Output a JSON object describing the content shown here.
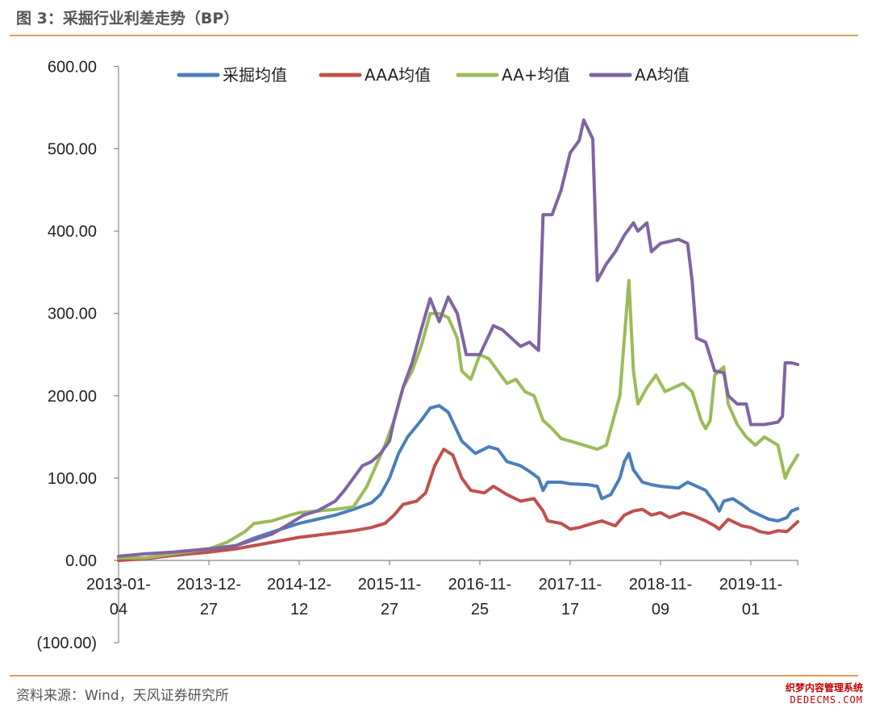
{
  "page": {
    "title": "图 3：采掘行业利差走势（BP）",
    "source": "资料来源：Wind，天风证券研究所",
    "watermark_cn": "织梦内容管理系统",
    "watermark_en": "DEDECMS.COM"
  },
  "chart_data": {
    "type": "line",
    "title": "采掘行业利差走势（BP）",
    "xlabel": "",
    "ylabel": "",
    "ylim": [
      -100,
      600
    ],
    "y_ticks": [
      {
        "value": 600,
        "label": "600.00"
      },
      {
        "value": 500,
        "label": "500.00"
      },
      {
        "value": 400,
        "label": "400.00"
      },
      {
        "value": 300,
        "label": "300.00"
      },
      {
        "value": 200,
        "label": "200.00"
      },
      {
        "value": 100,
        "label": "100.00"
      },
      {
        "value": 0,
        "label": "0.00"
      },
      {
        "value": -100,
        "label": "(100.00)",
        "negative": true
      }
    ],
    "x_ticks": [
      {
        "label_top": "2013-01-",
        "label_bottom": "04",
        "pos": 0
      },
      {
        "label_top": "2013-12-",
        "label_bottom": "27",
        "pos": 1
      },
      {
        "label_top": "2014-12-",
        "label_bottom": "12",
        "pos": 2
      },
      {
        "label_top": "2015-11-",
        "label_bottom": "27",
        "pos": 3
      },
      {
        "label_top": "2016-11-",
        "label_bottom": "25",
        "pos": 4
      },
      {
        "label_top": "2017-11-",
        "label_bottom": "17",
        "pos": 5
      },
      {
        "label_top": "2018-11-",
        "label_bottom": "09",
        "pos": 6
      },
      {
        "label_top": "2019-11-",
        "label_bottom": "01",
        "pos": 7
      }
    ],
    "x_range": [
      0,
      7.52
    ],
    "legend_position": "top",
    "grid": false,
    "series": [
      {
        "name": "采掘均值",
        "color": "#4a7ebb",
        "points": [
          [
            0,
            0
          ],
          [
            0.3,
            3
          ],
          [
            0.6,
            8
          ],
          [
            1.0,
            12
          ],
          [
            1.3,
            18
          ],
          [
            1.5,
            27
          ],
          [
            1.8,
            38
          ],
          [
            2.0,
            45
          ],
          [
            2.2,
            50
          ],
          [
            2.4,
            55
          ],
          [
            2.6,
            62
          ],
          [
            2.8,
            70
          ],
          [
            2.9,
            80
          ],
          [
            3.0,
            100
          ],
          [
            3.1,
            130
          ],
          [
            3.2,
            150
          ],
          [
            3.35,
            170
          ],
          [
            3.45,
            185
          ],
          [
            3.55,
            188
          ],
          [
            3.65,
            180
          ],
          [
            3.8,
            145
          ],
          [
            3.95,
            130
          ],
          [
            4.1,
            138
          ],
          [
            4.2,
            135
          ],
          [
            4.3,
            120
          ],
          [
            4.45,
            115
          ],
          [
            4.55,
            108
          ],
          [
            4.65,
            100
          ],
          [
            4.7,
            85
          ],
          [
            4.75,
            95
          ],
          [
            4.9,
            95
          ],
          [
            5.0,
            93
          ],
          [
            5.2,
            92
          ],
          [
            5.3,
            90
          ],
          [
            5.35,
            75
          ],
          [
            5.45,
            80
          ],
          [
            5.55,
            100
          ],
          [
            5.6,
            120
          ],
          [
            5.65,
            130
          ],
          [
            5.7,
            110
          ],
          [
            5.8,
            95
          ],
          [
            5.9,
            92
          ],
          [
            6.0,
            90
          ],
          [
            6.2,
            88
          ],
          [
            6.3,
            95
          ],
          [
            6.4,
            90
          ],
          [
            6.5,
            85
          ],
          [
            6.6,
            70
          ],
          [
            6.65,
            60
          ],
          [
            6.7,
            72
          ],
          [
            6.8,
            75
          ],
          [
            6.9,
            68
          ],
          [
            7.0,
            60
          ],
          [
            7.1,
            55
          ],
          [
            7.2,
            50
          ],
          [
            7.3,
            48
          ],
          [
            7.4,
            52
          ],
          [
            7.45,
            60
          ],
          [
            7.52,
            63
          ]
        ]
      },
      {
        "name": "AAA均值",
        "color": "#c0504d",
        "points": [
          [
            0,
            0
          ],
          [
            0.3,
            2
          ],
          [
            0.6,
            6
          ],
          [
            1.0,
            10
          ],
          [
            1.3,
            14
          ],
          [
            1.5,
            18
          ],
          [
            1.8,
            24
          ],
          [
            2.0,
            28
          ],
          [
            2.3,
            32
          ],
          [
            2.6,
            36
          ],
          [
            2.8,
            40
          ],
          [
            2.95,
            45
          ],
          [
            3.05,
            55
          ],
          [
            3.15,
            68
          ],
          [
            3.3,
            72
          ],
          [
            3.4,
            82
          ],
          [
            3.5,
            115
          ],
          [
            3.6,
            135
          ],
          [
            3.7,
            128
          ],
          [
            3.8,
            100
          ],
          [
            3.9,
            85
          ],
          [
            4.05,
            82
          ],
          [
            4.15,
            90
          ],
          [
            4.3,
            80
          ],
          [
            4.45,
            72
          ],
          [
            4.6,
            75
          ],
          [
            4.7,
            60
          ],
          [
            4.75,
            48
          ],
          [
            4.9,
            45
          ],
          [
            5.0,
            38
          ],
          [
            5.1,
            40
          ],
          [
            5.25,
            45
          ],
          [
            5.35,
            48
          ],
          [
            5.5,
            42
          ],
          [
            5.6,
            55
          ],
          [
            5.7,
            60
          ],
          [
            5.8,
            62
          ],
          [
            5.9,
            55
          ],
          [
            6.0,
            58
          ],
          [
            6.1,
            52
          ],
          [
            6.25,
            58
          ],
          [
            6.35,
            55
          ],
          [
            6.5,
            48
          ],
          [
            6.6,
            42
          ],
          [
            6.65,
            38
          ],
          [
            6.75,
            50
          ],
          [
            6.9,
            42
          ],
          [
            7.0,
            40
          ],
          [
            7.1,
            35
          ],
          [
            7.2,
            33
          ],
          [
            7.3,
            36
          ],
          [
            7.4,
            35
          ],
          [
            7.45,
            40
          ],
          [
            7.52,
            47
          ]
        ]
      },
      {
        "name": "AA+均值",
        "color": "#9bbb59",
        "points": [
          [
            0,
            3
          ],
          [
            0.3,
            3
          ],
          [
            0.6,
            8
          ],
          [
            1.0,
            14
          ],
          [
            1.2,
            22
          ],
          [
            1.4,
            35
          ],
          [
            1.5,
            45
          ],
          [
            1.7,
            48
          ],
          [
            1.9,
            55
          ],
          [
            2.0,
            58
          ],
          [
            2.2,
            60
          ],
          [
            2.4,
            62
          ],
          [
            2.6,
            65
          ],
          [
            2.75,
            90
          ],
          [
            2.85,
            115
          ],
          [
            2.95,
            140
          ],
          [
            3.05,
            170
          ],
          [
            3.15,
            210
          ],
          [
            3.25,
            230
          ],
          [
            3.35,
            260
          ],
          [
            3.45,
            300
          ],
          [
            3.55,
            300
          ],
          [
            3.65,
            295
          ],
          [
            3.75,
            270
          ],
          [
            3.8,
            230
          ],
          [
            3.9,
            220
          ],
          [
            4.0,
            250
          ],
          [
            4.1,
            245
          ],
          [
            4.2,
            230
          ],
          [
            4.3,
            215
          ],
          [
            4.4,
            220
          ],
          [
            4.5,
            205
          ],
          [
            4.6,
            200
          ],
          [
            4.7,
            170
          ],
          [
            4.8,
            160
          ],
          [
            4.9,
            148
          ],
          [
            5.0,
            145
          ],
          [
            5.15,
            140
          ],
          [
            5.3,
            135
          ],
          [
            5.4,
            140
          ],
          [
            5.5,
            180
          ],
          [
            5.55,
            200
          ],
          [
            5.6,
            270
          ],
          [
            5.65,
            340
          ],
          [
            5.7,
            230
          ],
          [
            5.75,
            190
          ],
          [
            5.85,
            210
          ],
          [
            5.95,
            225
          ],
          [
            6.05,
            205
          ],
          [
            6.15,
            210
          ],
          [
            6.25,
            215
          ],
          [
            6.35,
            205
          ],
          [
            6.45,
            170
          ],
          [
            6.5,
            160
          ],
          [
            6.55,
            170
          ],
          [
            6.6,
            225
          ],
          [
            6.7,
            235
          ],
          [
            6.75,
            190
          ],
          [
            6.85,
            165
          ],
          [
            6.95,
            150
          ],
          [
            7.05,
            140
          ],
          [
            7.15,
            150
          ],
          [
            7.3,
            140
          ],
          [
            7.38,
            100
          ],
          [
            7.42,
            110
          ],
          [
            7.52,
            128
          ]
        ]
      },
      {
        "name": "AA均值",
        "color": "#8064a2",
        "points": [
          [
            0,
            5
          ],
          [
            0.3,
            8
          ],
          [
            0.6,
            10
          ],
          [
            1.0,
            14
          ],
          [
            1.3,
            18
          ],
          [
            1.5,
            25
          ],
          [
            1.7,
            32
          ],
          [
            1.9,
            45
          ],
          [
            2.05,
            55
          ],
          [
            2.2,
            60
          ],
          [
            2.4,
            72
          ],
          [
            2.5,
            85
          ],
          [
            2.6,
            100
          ],
          [
            2.7,
            115
          ],
          [
            2.8,
            120
          ],
          [
            2.9,
            130
          ],
          [
            3.0,
            145
          ],
          [
            3.05,
            170
          ],
          [
            3.15,
            210
          ],
          [
            3.25,
            240
          ],
          [
            3.35,
            280
          ],
          [
            3.45,
            318
          ],
          [
            3.55,
            290
          ],
          [
            3.65,
            320
          ],
          [
            3.75,
            300
          ],
          [
            3.85,
            250
          ],
          [
            4.0,
            250
          ],
          [
            4.15,
            285
          ],
          [
            4.25,
            280
          ],
          [
            4.35,
            270
          ],
          [
            4.45,
            260
          ],
          [
            4.55,
            265
          ],
          [
            4.65,
            255
          ],
          [
            4.7,
            420
          ],
          [
            4.8,
            420
          ],
          [
            4.9,
            450
          ],
          [
            5.0,
            495
          ],
          [
            5.1,
            510
          ],
          [
            5.15,
            535
          ],
          [
            5.25,
            512
          ],
          [
            5.3,
            340
          ],
          [
            5.4,
            360
          ],
          [
            5.5,
            375
          ],
          [
            5.6,
            395
          ],
          [
            5.7,
            410
          ],
          [
            5.75,
            400
          ],
          [
            5.85,
            410
          ],
          [
            5.9,
            375
          ],
          [
            6.0,
            385
          ],
          [
            6.2,
            390
          ],
          [
            6.3,
            385
          ],
          [
            6.35,
            340
          ],
          [
            6.4,
            270
          ],
          [
            6.5,
            265
          ],
          [
            6.6,
            230
          ],
          [
            6.7,
            228
          ],
          [
            6.75,
            200
          ],
          [
            6.85,
            190
          ],
          [
            6.95,
            190
          ],
          [
            7.0,
            165
          ],
          [
            7.15,
            165
          ],
          [
            7.3,
            168
          ],
          [
            7.35,
            175
          ],
          [
            7.38,
            240
          ],
          [
            7.45,
            240
          ],
          [
            7.52,
            238
          ]
        ]
      }
    ]
  }
}
